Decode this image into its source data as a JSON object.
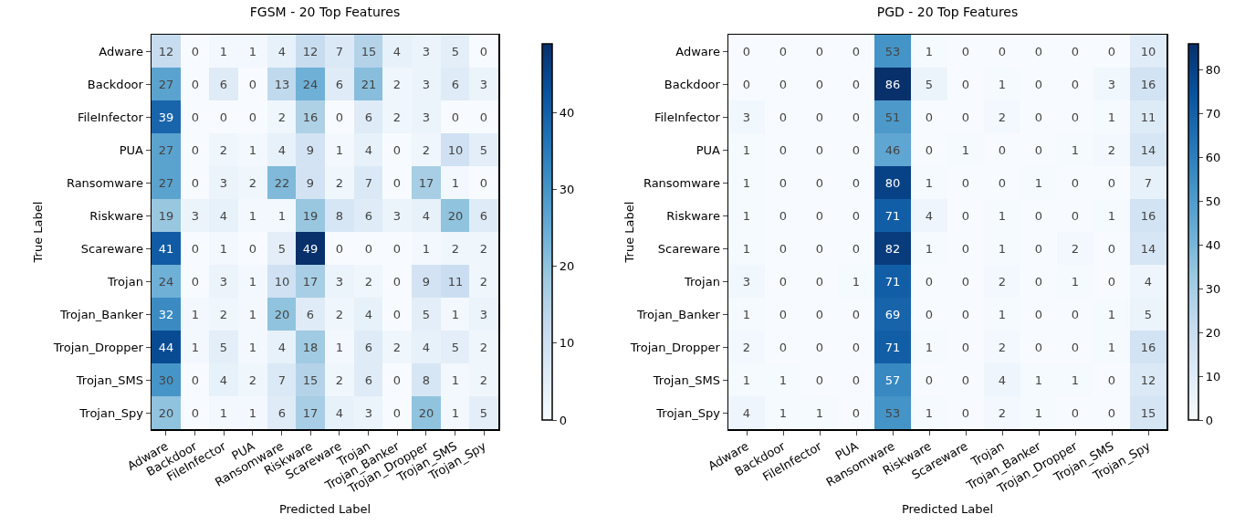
{
  "chart_data": [
    {
      "type": "heatmap",
      "title": "FGSM - 20 Top Features",
      "xlabel": "Predicted Label",
      "ylabel": "True Label",
      "categories": [
        "Adware",
        "Backdoor",
        "FileInfector",
        "PUA",
        "Ransomware",
        "Riskware",
        "Scareware",
        "Trojan",
        "Trojan_Banker",
        "Trojan_Dropper",
        "Trojan_SMS",
        "Trojan_Spy"
      ],
      "y_categories": [
        "Adware",
        "Backdoor",
        "FileInfector",
        "PUA",
        "Ransomware",
        "Riskware",
        "Scareware",
        "Trojan",
        "Trojan_Banker",
        "Trojan_Dropper",
        "Trojan_SMS",
        "Trojan_Spy"
      ],
      "cells": [
        [
          12,
          0,
          1,
          1,
          4,
          12,
          7,
          15,
          4,
          3,
          5,
          0
        ],
        [
          27,
          0,
          6,
          0,
          13,
          24,
          6,
          21,
          2,
          3,
          6,
          3
        ],
        [
          39,
          0,
          0,
          0,
          2,
          16,
          0,
          6,
          2,
          3,
          0,
          0
        ],
        [
          27,
          0,
          2,
          1,
          4,
          9,
          1,
          4,
          0,
          2,
          10,
          5
        ],
        [
          27,
          0,
          3,
          2,
          22,
          9,
          2,
          7,
          0,
          17,
          1,
          0
        ],
        [
          19,
          3,
          4,
          1,
          1,
          19,
          8,
          6,
          3,
          4,
          20,
          6
        ],
        [
          41,
          0,
          1,
          0,
          5,
          49,
          0,
          0,
          0,
          1,
          2,
          2
        ],
        [
          24,
          0,
          3,
          1,
          10,
          17,
          3,
          2,
          0,
          9,
          11,
          2
        ],
        [
          32,
          1,
          2,
          1,
          20,
          6,
          2,
          4,
          0,
          5,
          1,
          3
        ],
        [
          44,
          1,
          5,
          1,
          4,
          18,
          1,
          6,
          2,
          4,
          5,
          2
        ],
        [
          30,
          0,
          4,
          2,
          7,
          15,
          2,
          6,
          0,
          8,
          1,
          2
        ],
        [
          20,
          0,
          1,
          1,
          6,
          17,
          4,
          3,
          0,
          20,
          1,
          5
        ]
      ],
      "clim": [
        0,
        49
      ],
      "cticks": [
        0,
        10,
        20,
        30,
        40
      ],
      "data_labels": true
    },
    {
      "type": "heatmap",
      "title": "PGD - 20 Top Features",
      "xlabel": "Predicted Label",
      "ylabel": "True Label",
      "categories": [
        "Adware",
        "Backdoor",
        "FileInfector",
        "PUA",
        "Ransomware",
        "Riskware",
        "Scareware",
        "Trojan",
        "Trojan_Banker",
        "Trojan_Dropper",
        "Trojan_SMS",
        "Trojan_Spy"
      ],
      "y_categories": [
        "Adware",
        "Backdoor",
        "FileInfector",
        "PUA",
        "Ransomware",
        "Riskware",
        "Scareware",
        "Trojan",
        "Trojan_Banker",
        "Trojan_Dropper",
        "Trojan_SMS",
        "Trojan_Spy"
      ],
      "cells": [
        [
          0,
          0,
          0,
          0,
          53,
          1,
          0,
          0,
          0,
          0,
          0,
          10
        ],
        [
          0,
          0,
          0,
          0,
          86,
          5,
          0,
          1,
          0,
          0,
          3,
          16
        ],
        [
          3,
          0,
          0,
          0,
          51,
          0,
          0,
          2,
          0,
          0,
          1,
          11
        ],
        [
          1,
          0,
          0,
          0,
          46,
          0,
          1,
          0,
          0,
          1,
          2,
          14
        ],
        [
          1,
          0,
          0,
          0,
          80,
          1,
          0,
          0,
          1,
          0,
          0,
          7
        ],
        [
          1,
          0,
          0,
          0,
          71,
          4,
          0,
          1,
          0,
          0,
          1,
          16
        ],
        [
          1,
          0,
          0,
          0,
          82,
          1,
          0,
          1,
          0,
          2,
          0,
          14
        ],
        [
          3,
          0,
          0,
          1,
          71,
          0,
          0,
          2,
          0,
          1,
          0,
          4
        ],
        [
          1,
          0,
          0,
          0,
          69,
          0,
          0,
          1,
          0,
          0,
          1,
          5
        ],
        [
          2,
          0,
          0,
          0,
          71,
          1,
          0,
          2,
          0,
          0,
          1,
          16
        ],
        [
          1,
          1,
          0,
          0,
          57,
          0,
          0,
          4,
          1,
          1,
          0,
          12
        ],
        [
          4,
          1,
          1,
          0,
          53,
          1,
          0,
          2,
          1,
          0,
          0,
          15
        ]
      ],
      "clim": [
        0,
        86
      ],
      "cticks": [
        0,
        10,
        20,
        30,
        40,
        50,
        60,
        70,
        80
      ],
      "data_labels": true
    }
  ]
}
